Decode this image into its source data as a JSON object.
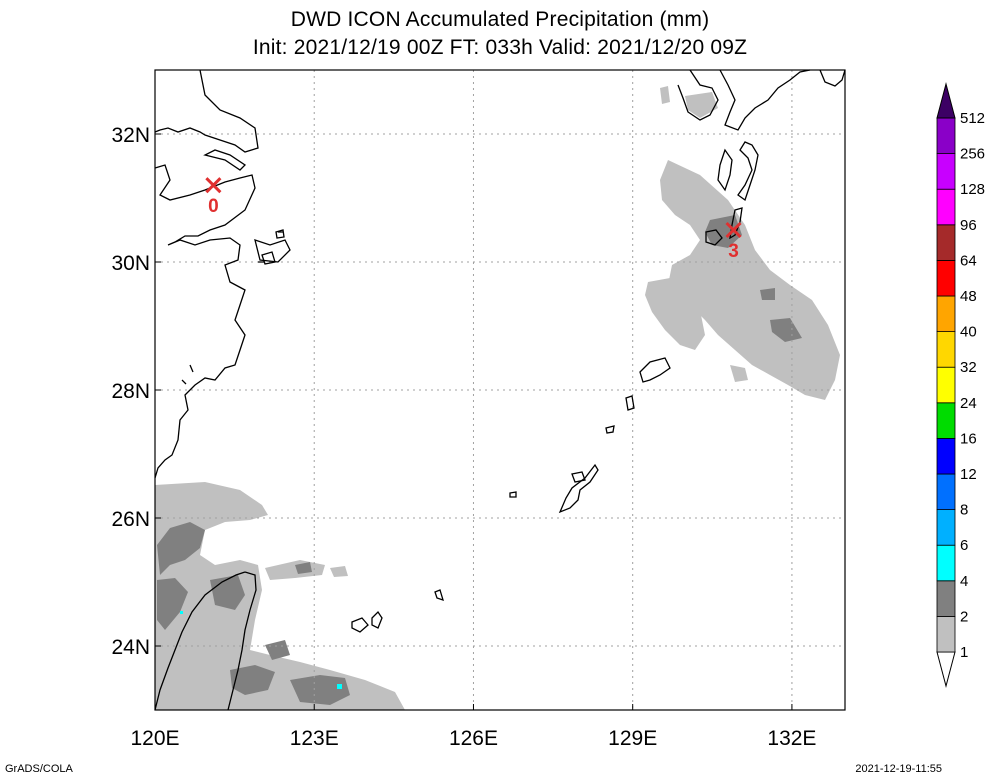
{
  "title": {
    "line1": "DWD ICON Accumulated Precipitation (mm)",
    "line2": "Init: 2021/12/19 00Z  FT: 033h  Valid: 2021/12/20 09Z"
  },
  "axes": {
    "lon_ticks": [
      "120E",
      "123E",
      "126E",
      "129E",
      "132E"
    ],
    "lat_ticks": [
      "32N",
      "30N",
      "28N",
      "26N",
      "24N"
    ],
    "lon_values": [
      120,
      123,
      126,
      129,
      132
    ],
    "lat_values": [
      32,
      30,
      28,
      26,
      24
    ],
    "lon_range": [
      120,
      133
    ],
    "lat_range": [
      23,
      33
    ],
    "grid": true
  },
  "colorbar": {
    "levels": [
      "1",
      "2",
      "4",
      "6",
      "8",
      "12",
      "16",
      "24",
      "32",
      "40",
      "48",
      "64",
      "96",
      "128",
      "256",
      "512"
    ],
    "colors": [
      "#c0c0c0",
      "#808080",
      "#00ffff",
      "#00b0ff",
      "#0070ff",
      "#0000ff",
      "#00dc00",
      "#ffff00",
      "#ffd700",
      "#ffa500",
      "#ff0000",
      "#a52a2a",
      "#ff00ff",
      "#c800ff",
      "#8a00c8",
      "#5a008c",
      "#3c0064"
    ],
    "under_color": "#ffffff",
    "over_color": "#3c0064"
  },
  "markers": [
    {
      "label": "0",
      "lon": 121.1,
      "lat": 31.2,
      "color": "#e03030"
    },
    {
      "label": "3",
      "lon": 130.9,
      "lat": 30.5,
      "color": "#e03030"
    }
  ],
  "footer": {
    "left": "GrADS/COLA",
    "right": "2021-12-19-11:55"
  }
}
